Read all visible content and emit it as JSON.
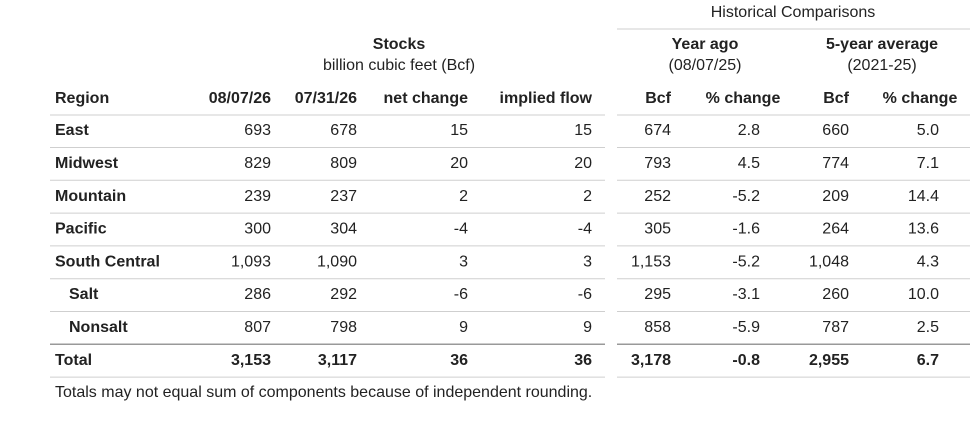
{
  "header": {
    "title": "Historical Comparisons"
  },
  "groups": [
    {
      "title": "Stocks",
      "subtitle": "billion cubic feet (Bcf)"
    },
    {
      "title": "Year ago",
      "subtitle": "(08/07/25)"
    },
    {
      "title": "5-year average",
      "subtitle": "(2021-25)"
    }
  ],
  "table": {
    "columns": [
      "Region",
      "08/07/26",
      "07/31/26",
      "net change",
      "implied flow",
      "Bcf",
      "% change",
      "Bcf",
      "% change"
    ],
    "rows": [
      [
        "East",
        "693",
        "678",
        "15",
        "15",
        "674",
        "2.8",
        "660",
        "5.0"
      ],
      [
        "Midwest",
        "829",
        "809",
        "20",
        "20",
        "793",
        "4.5",
        "774",
        "7.1"
      ],
      [
        "Mountain",
        "239",
        "237",
        "2",
        "2",
        "252",
        "-5.2",
        "209",
        "14.4"
      ],
      [
        "Pacific",
        "300",
        "304",
        "-4",
        "-4",
        "305",
        "-1.6",
        "264",
        "13.6"
      ],
      [
        "South Central",
        "1,093",
        "1,090",
        "3",
        "3",
        "1,153",
        "-5.2",
        "1,048",
        "4.3"
      ],
      [
        "Salt",
        "286",
        "292",
        "-6",
        "-6",
        "295",
        "-3.1",
        "260",
        "10.0"
      ],
      [
        "Nonsalt",
        "807",
        "798",
        "9",
        "9",
        "858",
        "-5.9",
        "787",
        "2.5"
      ],
      [
        "Total",
        "3,153",
        "3,117",
        "36",
        "36",
        "3,178",
        "-0.8",
        "2,955",
        "6.7"
      ]
    ]
  },
  "footnote": "Totals may not equal sum of components because of independent rounding."
}
